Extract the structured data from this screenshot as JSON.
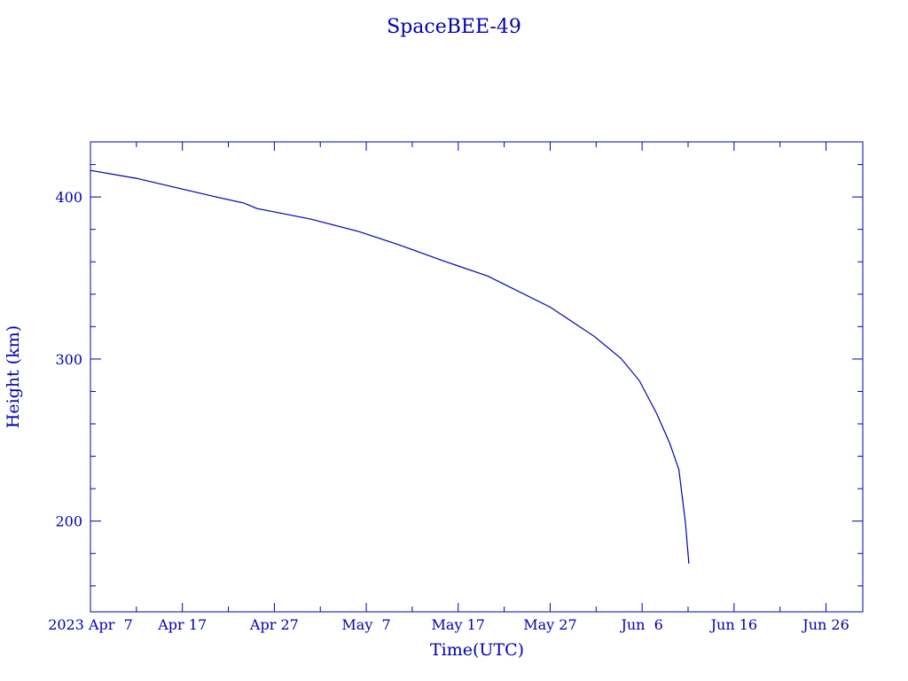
{
  "chart_data": {
    "type": "line",
    "title": "SpaceBEE-49",
    "xlabel": "Time(UTC)",
    "ylabel": "Height (km)",
    "xlim": [
      "2023-04-07T00:00",
      "2023-06-30T00:00"
    ],
    "ylim": [
      144,
      434
    ],
    "x_ticks": [
      {
        "date": "2023-04-07",
        "label": "2023 Apr  7"
      },
      {
        "date": "2023-04-17",
        "label": "Apr 17"
      },
      {
        "date": "2023-04-27",
        "label": "Apr 27"
      },
      {
        "date": "2023-05-07",
        "label": "May  7"
      },
      {
        "date": "2023-05-17",
        "label": "May 17"
      },
      {
        "date": "2023-05-27",
        "label": "May 27"
      },
      {
        "date": "2023-06-06",
        "label": "Jun  6"
      },
      {
        "date": "2023-06-16",
        "label": "Jun 16"
      },
      {
        "date": "2023-06-26",
        "label": "Jun 26"
      }
    ],
    "y_ticks": [
      {
        "value": 200,
        "label": "200"
      },
      {
        "value": 300,
        "label": "300"
      },
      {
        "value": 400,
        "label": "400"
      }
    ],
    "grid": false,
    "color": "#0000b4",
    "series": [
      {
        "x": [
          "2023-04-07T00:00",
          "2023-04-12T00:00",
          "2023-04-14T12:00",
          "2023-04-20T07:00",
          "2023-04-23T17:00",
          "2023-04-25T02:00",
          "2023-05-01T00:00",
          "2023-05-06T05:00",
          "2023-05-10T14:00",
          "2023-05-15T10:00",
          "2023-05-20T05:00",
          "2023-05-27T00:00",
          "2023-05-31T19:00",
          "2023-06-03T17:00",
          "2023-06-05T17:00",
          "2023-06-07T14:00",
          "2023-06-09T00:00",
          "2023-06-10T00:00",
          "2023-06-10T17:00",
          "2023-06-11T02:00"
        ],
        "y": [
          416.4,
          411.5,
          408.2,
          400.5,
          396.2,
          392.9,
          386.3,
          378.6,
          370.4,
          360.5,
          351.2,
          332.0,
          314.0,
          300.3,
          286.6,
          266.3,
          248.0,
          231.8,
          199.0,
          173.7
        ]
      }
    ]
  }
}
